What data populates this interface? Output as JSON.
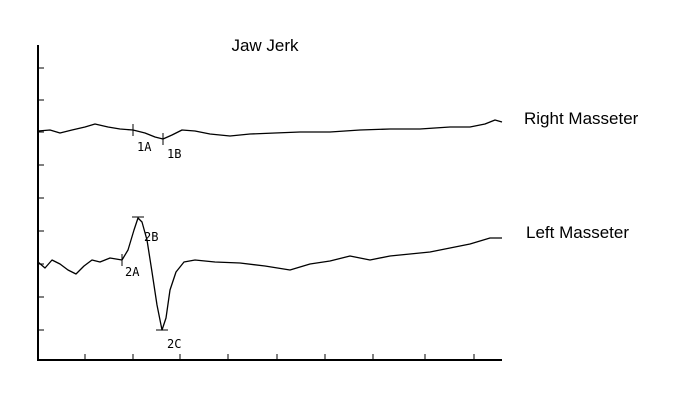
{
  "title": "Jaw Jerk",
  "traces": [
    {
      "label": "Right Masseter",
      "markers": [
        "1A",
        "1B"
      ]
    },
    {
      "label": "Left Masseter",
      "markers": [
        "2A",
        "2B",
        "2C"
      ]
    }
  ]
}
